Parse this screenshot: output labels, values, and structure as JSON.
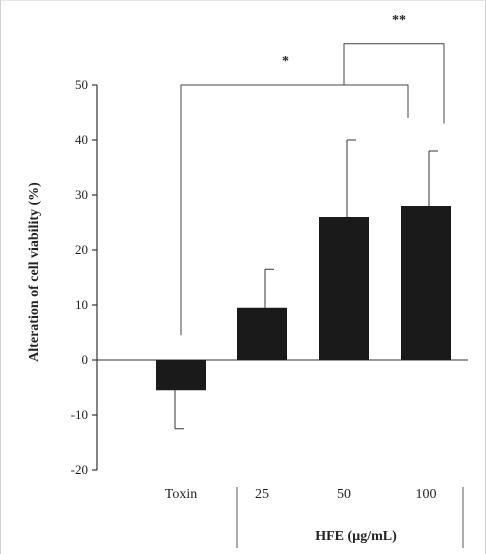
{
  "chart_data": {
    "type": "bar",
    "categories": [
      "Toxin",
      "25",
      "50",
      "100"
    ],
    "values": [
      -5.5,
      9.5,
      26,
      28
    ],
    "errors": [
      7,
      7,
      14,
      10
    ],
    "ylabel": "Alteration of cell viability (%)",
    "xgroup_label": "HFE (µg/mL)",
    "ylim": [
      -20,
      50
    ],
    "yticks": [
      50,
      40,
      30,
      20,
      10,
      0,
      -10,
      -20
    ],
    "ytick_labels": [
      "50",
      "40",
      "30",
      "20",
      "10",
      "0",
      "-10",
      "-20"
    ],
    "grid": false,
    "bar_color": "#1a1a1a",
    "significance": [
      {
        "from": "Toxin",
        "to": "50",
        "label": "*"
      },
      {
        "from": "50",
        "to": "100",
        "label": "**"
      }
    ]
  }
}
